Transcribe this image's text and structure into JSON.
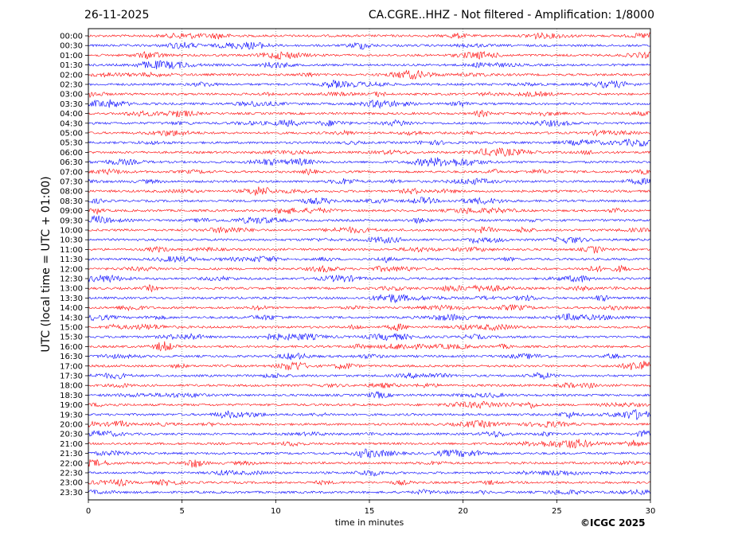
{
  "header": {
    "date": "26-11-2025",
    "station_title": "CA.CGRE..HHZ - Not filtered - Amplification: 1/8000"
  },
  "footer": {
    "credit": "©ICGC 2025"
  },
  "chart_data": {
    "type": "line",
    "title": "CA.CGRE..HHZ - Not filtered - Amplification: 1/8000",
    "subtitle": "26-11-2025",
    "xlabel": "time in minutes",
    "ylabel": "UTC (local time = UTC + 01:00)",
    "xlim": [
      0,
      30
    ],
    "x_ticks": [
      0,
      5,
      10,
      15,
      20,
      25,
      30
    ],
    "x_tick_labels": [
      "0",
      "5",
      "10",
      "15",
      "20",
      "25",
      "30"
    ],
    "grid": "vertical dotted lines at 5-minute intervals",
    "alternating_colors": [
      "#ff0000",
      "#0000ff"
    ],
    "rows": [
      "00:00",
      "00:30",
      "01:00",
      "01:30",
      "02:00",
      "02:30",
      "03:00",
      "03:30",
      "04:00",
      "04:30",
      "05:00",
      "05:30",
      "06:00",
      "06:30",
      "07:00",
      "07:30",
      "08:00",
      "08:30",
      "09:00",
      "09:30",
      "10:00",
      "10:30",
      "11:00",
      "11:30",
      "12:00",
      "12:30",
      "13:00",
      "13:30",
      "14:00",
      "14:30",
      "15:00",
      "15:30",
      "16:00",
      "16:30",
      "17:00",
      "17:30",
      "18:00",
      "18:30",
      "19:00",
      "19:30",
      "20:00",
      "20:30",
      "21:00",
      "21:30",
      "22:00",
      "22:30",
      "23:00",
      "23:30"
    ]
  }
}
